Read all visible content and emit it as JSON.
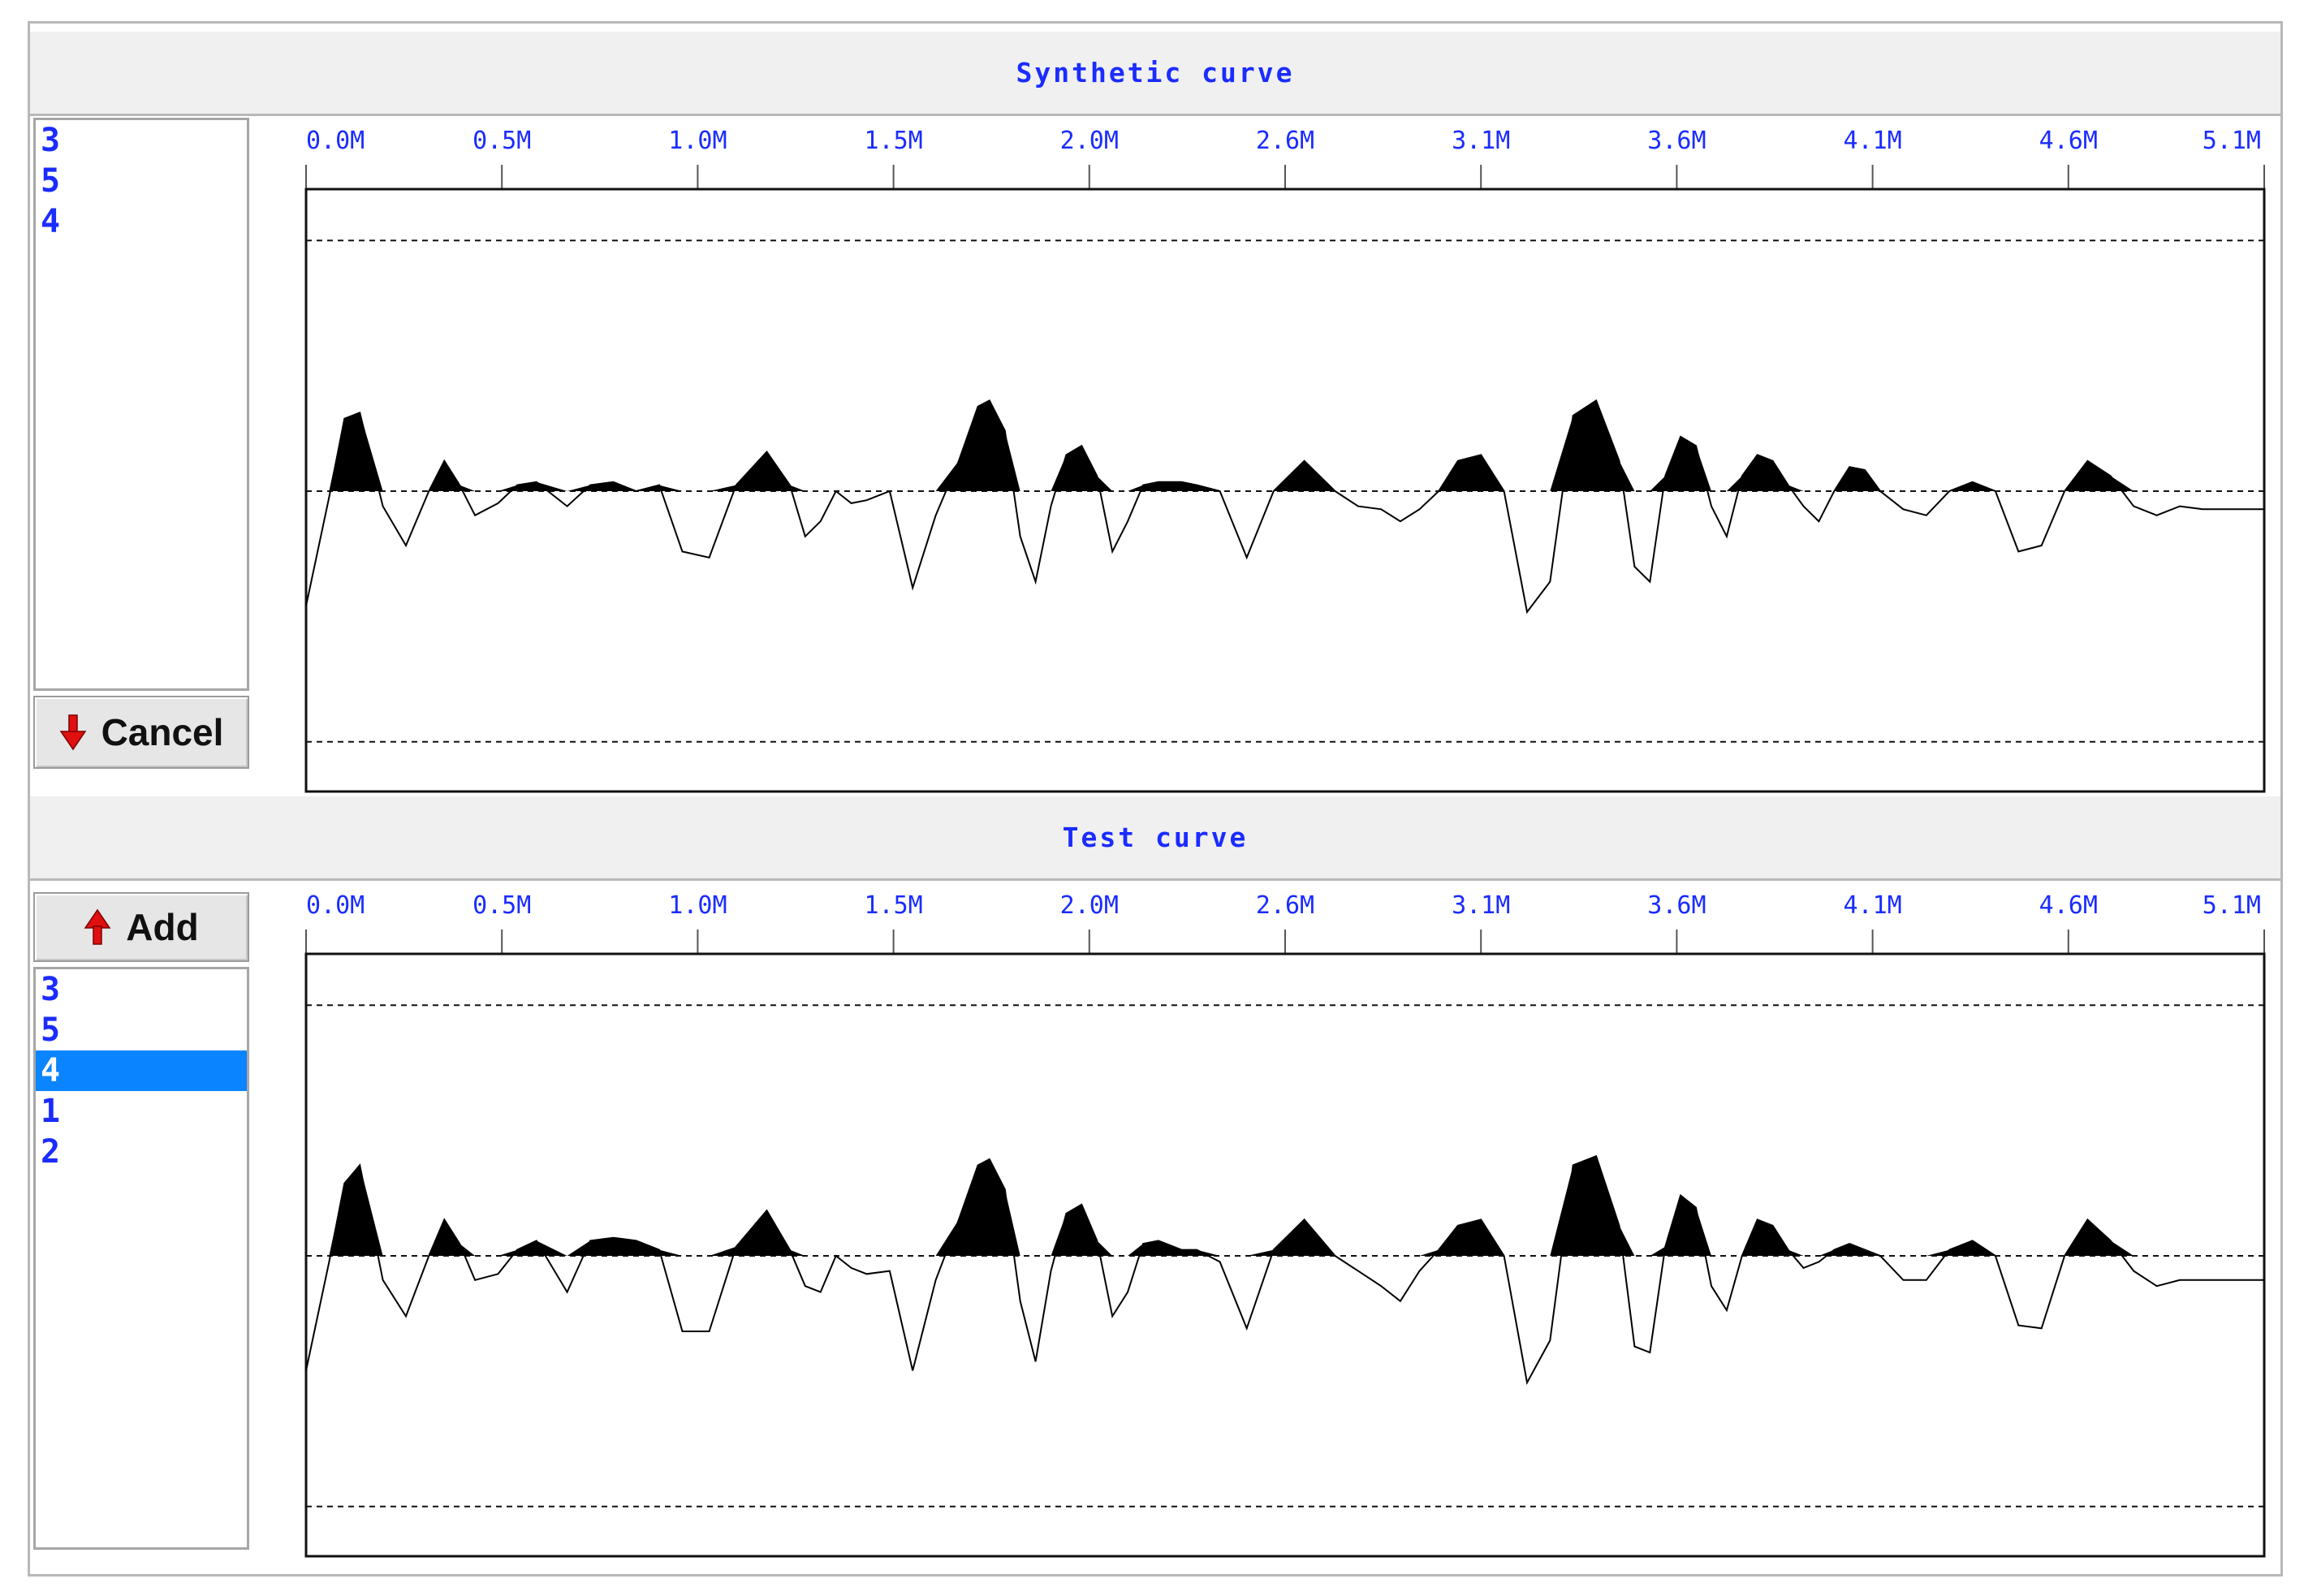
{
  "panels": [
    {
      "title": "Synthetic curve",
      "button": {
        "label": "Cancel",
        "icon": "arrow-down-icon"
      },
      "list_items": [
        "3",
        "5",
        "4"
      ],
      "selected_index": -1,
      "axis_ticks": [
        "0.0M",
        "0.5M",
        "1.0M",
        "1.5M",
        "2.0M",
        "2.6M",
        "3.1M",
        "3.6M",
        "4.1M",
        "4.6M",
        "5.1M"
      ]
    },
    {
      "title": "Test curve",
      "button": {
        "label": "Add",
        "icon": "arrow-up-icon"
      },
      "list_items": [
        "3",
        "5",
        "4",
        "1",
        "2"
      ],
      "selected_index": 2,
      "axis_ticks": [
        "0.0M",
        "0.5M",
        "1.0M",
        "1.5M",
        "2.0M",
        "2.6M",
        "3.1M",
        "3.6M",
        "4.1M",
        "4.6M",
        "5.1M"
      ]
    }
  ],
  "colors": {
    "title_text": "#1a2cff",
    "list_text": "#1a2cff",
    "selection": "#0a84ff",
    "button_arrow": "#e01010"
  },
  "chart_data": [
    {
      "type": "line",
      "title": "Synthetic curve",
      "xlim": [
        0,
        5.1
      ],
      "ylim": [
        -1,
        1
      ],
      "reference_lines": [
        0.83,
        0,
        -0.83
      ],
      "fill": "above-zero",
      "x": [
        0.0,
        0.06,
        0.1,
        0.14,
        0.2,
        0.26,
        0.32,
        0.36,
        0.4,
        0.44,
        0.5,
        0.55,
        0.6,
        0.68,
        0.74,
        0.8,
        0.86,
        0.92,
        0.98,
        1.05,
        1.12,
        1.2,
        1.26,
        1.3,
        1.34,
        1.38,
        1.42,
        1.46,
        1.52,
        1.58,
        1.64,
        1.7,
        1.75,
        1.78,
        1.82,
        1.86,
        1.9,
        1.94,
        1.98,
        2.02,
        2.06,
        2.1,
        2.14,
        2.18,
        2.22,
        2.28,
        2.32,
        2.38,
        2.45,
        2.52,
        2.6,
        2.68,
        2.74,
        2.8,
        2.85,
        2.9,
        2.95,
        3.0,
        3.06,
        3.12,
        3.18,
        3.24,
        3.3,
        3.36,
        3.42,
        3.46,
        3.5,
        3.54,
        3.58,
        3.62,
        3.66,
        3.7,
        3.74,
        3.78,
        3.82,
        3.86,
        3.9,
        3.94,
        3.98,
        4.02,
        4.06,
        4.1,
        4.16,
        4.22,
        4.28,
        4.34,
        4.4,
        4.46,
        4.52,
        4.58,
        4.64,
        4.7,
        4.76,
        4.82,
        4.88,
        4.94,
        5.0,
        5.1
      ],
      "y": [
        -0.38,
        -0.02,
        0.24,
        0.26,
        -0.05,
        -0.18,
        0.0,
        0.1,
        0.02,
        -0.08,
        -0.04,
        0.02,
        0.03,
        -0.05,
        0.02,
        0.03,
        0.0,
        0.02,
        -0.2,
        -0.22,
        0.02,
        0.13,
        0.02,
        -0.15,
        -0.1,
        0.0,
        -0.04,
        -0.03,
        0.0,
        -0.32,
        -0.08,
        0.1,
        0.28,
        0.3,
        0.2,
        -0.15,
        -0.3,
        -0.05,
        0.12,
        0.15,
        0.05,
        -0.2,
        -0.1,
        0.02,
        0.03,
        0.03,
        0.02,
        0.0,
        -0.22,
        0.0,
        0.1,
        0.0,
        -0.05,
        -0.06,
        -0.1,
        -0.06,
        0.0,
        0.1,
        0.12,
        0.0,
        -0.4,
        -0.3,
        0.25,
        0.3,
        0.1,
        -0.25,
        -0.3,
        0.05,
        0.18,
        0.15,
        -0.05,
        -0.15,
        0.05,
        0.12,
        0.1,
        0.02,
        -0.05,
        -0.1,
        0.0,
        0.08,
        0.07,
        0.0,
        -0.06,
        -0.08,
        0.0,
        0.03,
        0.0,
        -0.2,
        -0.18,
        0.0,
        0.1,
        0.05,
        -0.05,
        -0.08,
        -0.05,
        -0.06,
        -0.06,
        -0.06
      ]
    },
    {
      "type": "line",
      "title": "Test curve",
      "xlim": [
        0,
        5.1
      ],
      "ylim": [
        -1,
        1
      ],
      "reference_lines": [
        0.83,
        0,
        -0.83
      ],
      "fill": "above-zero",
      "x": [
        0.0,
        0.06,
        0.1,
        0.14,
        0.2,
        0.26,
        0.32,
        0.36,
        0.4,
        0.44,
        0.5,
        0.55,
        0.6,
        0.68,
        0.74,
        0.8,
        0.86,
        0.92,
        0.98,
        1.05,
        1.12,
        1.2,
        1.26,
        1.3,
        1.34,
        1.38,
        1.42,
        1.46,
        1.52,
        1.58,
        1.64,
        1.7,
        1.75,
        1.78,
        1.82,
        1.86,
        1.9,
        1.94,
        1.98,
        2.02,
        2.06,
        2.1,
        2.14,
        2.18,
        2.22,
        2.28,
        2.32,
        2.38,
        2.45,
        2.52,
        2.6,
        2.68,
        2.74,
        2.8,
        2.85,
        2.9,
        2.95,
        3.0,
        3.06,
        3.12,
        3.18,
        3.24,
        3.3,
        3.36,
        3.42,
        3.46,
        3.5,
        3.54,
        3.58,
        3.62,
        3.66,
        3.7,
        3.74,
        3.78,
        3.82,
        3.86,
        3.9,
        3.94,
        3.98,
        4.02,
        4.06,
        4.1,
        4.16,
        4.22,
        4.28,
        4.34,
        4.4,
        4.46,
        4.52,
        4.58,
        4.64,
        4.7,
        4.76,
        4.82,
        4.88,
        4.94,
        5.0,
        5.1
      ],
      "y": [
        -0.38,
        -0.02,
        0.24,
        0.3,
        -0.08,
        -0.2,
        0.0,
        0.12,
        0.04,
        -0.08,
        -0.06,
        0.02,
        0.05,
        -0.12,
        0.05,
        0.06,
        0.05,
        0.02,
        -0.25,
        -0.25,
        0.03,
        0.15,
        0.02,
        -0.1,
        -0.12,
        0.0,
        -0.04,
        -0.06,
        -0.05,
        -0.38,
        -0.08,
        0.12,
        0.3,
        0.32,
        0.22,
        -0.15,
        -0.35,
        -0.05,
        0.14,
        0.17,
        0.05,
        -0.2,
        -0.12,
        0.04,
        0.05,
        0.02,
        0.02,
        -0.02,
        -0.24,
        0.02,
        0.12,
        0.0,
        -0.05,
        -0.1,
        -0.15,
        -0.05,
        0.02,
        0.1,
        0.12,
        0.0,
        -0.42,
        -0.28,
        0.3,
        0.33,
        0.1,
        -0.3,
        -0.32,
        0.03,
        0.2,
        0.16,
        -0.1,
        -0.18,
        0.0,
        0.12,
        0.1,
        0.02,
        -0.04,
        -0.02,
        0.02,
        0.04,
        0.02,
        0.0,
        -0.08,
        -0.08,
        0.02,
        0.05,
        0.0,
        -0.23,
        -0.24,
        0.0,
        0.12,
        0.05,
        -0.05,
        -0.1,
        -0.08,
        -0.08,
        -0.08,
        -0.08
      ]
    }
  ]
}
